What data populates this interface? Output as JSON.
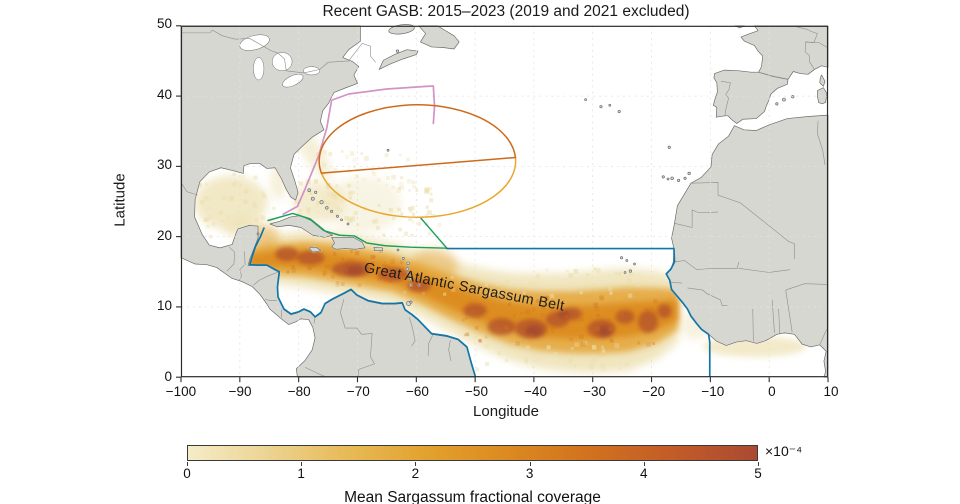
{
  "figure": {
    "title": "Recent GASB: 2015–2023 (2019 and 2021 excluded)",
    "xlabel": "Longitude",
    "ylabel": "Latitude",
    "belt_label": "Great Atlantic Sargassum Belt",
    "x_ticks": [
      "−100",
      "−90",
      "−80",
      "−70",
      "−60",
      "−50",
      "−40",
      "−30",
      "−20",
      "−10",
      "0",
      "10"
    ],
    "y_ticks": [
      "0",
      "10",
      "20",
      "30",
      "40",
      "50"
    ],
    "colorbar": {
      "label": "Mean Sargassum fractional coverage",
      "multiplier": "×10⁻⁴",
      "ticks": [
        "0",
        "1",
        "2",
        "3",
        "4",
        "5"
      ],
      "gradient": [
        "#f5ecc8",
        "#ecd391",
        "#e7b955",
        "#e2a02c",
        "#db8820",
        "#d1701f",
        "#c25b28",
        "#aa4a32"
      ]
    },
    "colors": {
      "land": "#d7d7d2",
      "coast": "#6b6b6b",
      "border": "#8d8d8d",
      "grid": "#e2e2e2",
      "gasb_outline": "#1177a9",
      "antilles_line": "#1aa15b",
      "gulf_stream_line": "#d293c6",
      "ellipse_top": "#ce6a1a",
      "ellipse_bottom": "#e8a72e",
      "heat_light": "#ecdfae",
      "heat_mid": "#e4a437",
      "heat_core": "#dc8a1e",
      "heat_dark": "#b4522c"
    }
  },
  "chart_data": {
    "type": "heatmap",
    "title": "Recent GASB: 2015–2023 (2019 and 2021 excluded)",
    "xlabel": "Longitude",
    "ylabel": "Latitude",
    "xlim": [
      -100,
      10
    ],
    "ylim": [
      0,
      50
    ],
    "x_ticks": [
      -100,
      -90,
      -80,
      -70,
      -60,
      -50,
      -40,
      -30,
      -20,
      -10,
      0,
      10
    ],
    "y_ticks": [
      0,
      10,
      20,
      30,
      40,
      50
    ],
    "grid": true,
    "colorbar": {
      "label": "Mean Sargassum fractional coverage",
      "scale_multiplier": "×10⁻⁴",
      "range": [
        0,
        5
      ],
      "orientation": "horizontal",
      "position": "bottom"
    },
    "annotations": [
      {
        "text": "Great Atlantic Sargassum Belt",
        "lon": -69,
        "lat": 15,
        "rotation_deg": 11
      }
    ],
    "overlays": [
      {
        "name": "GASB region outline",
        "color": "#1177a9",
        "description": "Blue outline: Caribbean coast of Central/South America and Guianas, equator east to lon −10, vertical at lon −10 to West African coast, then 18° N boundary west to lon −55"
      },
      {
        "name": "Antilles boundary line",
        "color": "#1aa15b",
        "description": "Green line along northern Greater Antilles from Yucatan Channel joining the 18° N boundary near lon −55, plus spur from ellipse near (−59, 22.5)"
      },
      {
        "name": "Gulf Stream front",
        "color": "#d293c6",
        "description": "Pink line from Florida Straits offshore of the US east coast to (−57, 41.4), then south to (−57, 36)"
      },
      {
        "name": "Sargasso Sea ellipse",
        "colors": [
          "#ce6a1a",
          "#e8a72e"
        ],
        "description": "Orange ellipse centered near (−60, 31), rx ≈ 17°, ry ≈ 8°, split by chord from (−76, 29) to (−43, 31); upper arc dark orange, lower arc amber"
      }
    ],
    "high_coverage_samples_x1e-4": [
      {
        "lon": -71,
        "lat": 15.5,
        "value": 4.5
      },
      {
        "lon": -64,
        "lat": 14.5,
        "value": 4.2
      },
      {
        "lon": -55,
        "lat": 11.5,
        "value": 3.0
      },
      {
        "lon": -45,
        "lat": 7.0,
        "value": 4.0
      },
      {
        "lon": -40,
        "lat": 7.0,
        "value": 4.5
      },
      {
        "lon": -33,
        "lat": 8.5,
        "value": 4.2
      },
      {
        "lon": -28,
        "lat": 7.0,
        "value": 4.0
      },
      {
        "lon": -20,
        "lat": 8.0,
        "value": 3.8
      },
      {
        "lon": -80,
        "lat": 17.0,
        "value": 3.0
      },
      {
        "lon": -92,
        "lat": 25.0,
        "value": 0.8
      },
      {
        "lon": -76,
        "lat": 24.5,
        "value": 0.7
      },
      {
        "lon": -3,
        "lat": 4.3,
        "value": 0.6
      }
    ]
  }
}
